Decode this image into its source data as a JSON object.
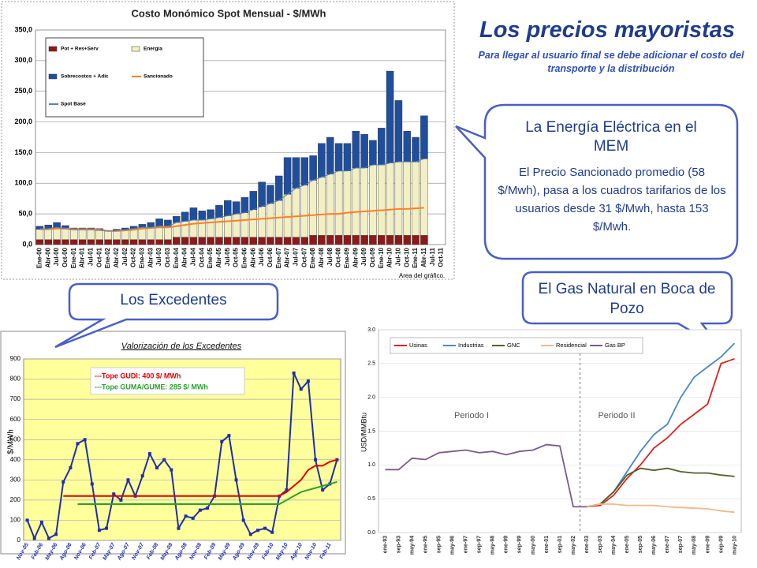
{
  "slide": {
    "title": "Los precios mayoristas",
    "subtitle": "Para llegar al usuario final se debe adicionar el costo del transporte y la distribución",
    "callouts": [
      {
        "heading": "La Energía Eléctrica en el MEM",
        "body": "El Precio Sancionado promedio (58 $/Mwh), pasa a los cuadros tarifarios de los usuarios desde 31 $/Mwh, hasta 153 $/Mwh."
      },
      {
        "heading": "Los Excedentes"
      },
      {
        "heading": "El Gas Natural en Boca de Pozo"
      }
    ]
  },
  "chart_data": [
    {
      "type": "bar",
      "title": "Costo Monómico Spot Mensual - $/MWh",
      "annotations": [
        "Area del gráfico."
      ],
      "categories": [
        "Ene-00",
        "Abr-00",
        "Jul-00",
        "Oct-00",
        "Ene-01",
        "Abr-01",
        "Jul-01",
        "Oct-01",
        "Ene-02",
        "Abr-02",
        "Jul-02",
        "Oct-02",
        "Ene-03",
        "Abr-03",
        "Jul-03",
        "Oct-03",
        "Ene-04",
        "Abr-04",
        "Jul-04",
        "Oct-04",
        "Ene-05",
        "Abr-05",
        "Jul-05",
        "Oct-05",
        "Ene-06",
        "Abr-06",
        "Jul-06",
        "Oct-06",
        "Ene-07",
        "Abr-07",
        "Jul-07",
        "Oct-07",
        "Ene-08",
        "Abr-08",
        "Jul-08",
        "Oct-08",
        "Ene-09",
        "Abr-09",
        "Jul-09",
        "Oct-09",
        "Ene-10",
        "Abr-10",
        "Jul-10",
        "Oct-10",
        "Ene-11",
        "Abr-11",
        "Jul-11",
        "Oct-11"
      ],
      "ylim": [
        0,
        350
      ],
      "yticks": [
        {
          "value": 0,
          "label": "0,0"
        },
        {
          "value": 50,
          "label": "50,0"
        },
        {
          "value": 100,
          "label": "100,0"
        },
        {
          "value": 150,
          "label": "150,0"
        },
        {
          "value": 200,
          "label": "200,0"
        },
        {
          "value": 250,
          "label": "250,0"
        },
        {
          "value": 300,
          "label": "300,0"
        },
        {
          "value": 350,
          "label": "350,0"
        }
      ],
      "grid": true,
      "series": [
        {
          "name": "Pot + Res+Serv",
          "color": "#8b1a1a",
          "values": [
            8,
            8,
            8,
            8,
            8,
            8,
            8,
            8,
            8,
            8,
            8,
            8,
            8,
            8,
            8,
            8,
            12,
            12,
            12,
            12,
            12,
            12,
            12,
            12,
            12,
            12,
            12,
            12,
            12,
            12,
            12,
            12,
            15,
            15,
            15,
            15,
            15,
            15,
            15,
            15,
            15,
            15,
            15,
            15,
            15,
            15,
            null,
            null
          ]
        },
        {
          "name": "Energía",
          "color": "#f3efc4",
          "values": [
            17,
            18,
            20,
            18,
            16,
            16,
            16,
            15,
            14,
            15,
            16,
            18,
            20,
            20,
            22,
            22,
            24,
            26,
            28,
            28,
            30,
            32,
            35,
            38,
            40,
            45,
            50,
            55,
            60,
            70,
            80,
            85,
            90,
            95,
            100,
            105,
            105,
            110,
            110,
            115,
            115,
            118,
            120,
            120,
            120,
            125,
            null,
            null
          ]
        },
        {
          "name": "Sobrecostos + Adic",
          "color": "#1f4e9c",
          "values": [
            5,
            6,
            8,
            5,
            3,
            3,
            3,
            3,
            1,
            2,
            3,
            4,
            5,
            8,
            12,
            10,
            10,
            15,
            20,
            15,
            15,
            20,
            25,
            20,
            25,
            30,
            40,
            30,
            40,
            60,
            50,
            45,
            40,
            55,
            60,
            45,
            45,
            60,
            55,
            40,
            60,
            150,
            100,
            50,
            40,
            70,
            null,
            null
          ]
        },
        {
          "name": "Sancionado",
          "type": "line",
          "color": "#ff7f27",
          "values": [
            25,
            25,
            26,
            26,
            25,
            25,
            25,
            24,
            22,
            22,
            23,
            24,
            26,
            27,
            28,
            28,
            30,
            32,
            34,
            35,
            36,
            37,
            38,
            39,
            40,
            41,
            42,
            43,
            44,
            45,
            46,
            47,
            48,
            49,
            50,
            50,
            52,
            53,
            54,
            55,
            56,
            57,
            58,
            58,
            59,
            60,
            null,
            null
          ]
        },
        {
          "name": "Spot Base",
          "type": "line",
          "color": "#4f81bd",
          "values": [
            25,
            26,
            28,
            26,
            24,
            24,
            24,
            23,
            22,
            23,
            24,
            26,
            28,
            28,
            30,
            30,
            36,
            38,
            40,
            40,
            42,
            44,
            47,
            50,
            52,
            57,
            62,
            67,
            72,
            82,
            92,
            97,
            105,
            110,
            115,
            120,
            120,
            125,
            125,
            130,
            130,
            133,
            135,
            135,
            135,
            140,
            null,
            null
          ]
        }
      ]
    },
    {
      "type": "line",
      "title": "Valorización de los Excedentes",
      "y_label": "$/MWh",
      "categories": [
        "Nov-05",
        null,
        "Feb-06",
        null,
        "May-06",
        null,
        "Ago-06",
        null,
        "Nov-06",
        null,
        "Feb-07",
        null,
        "May-07",
        null,
        "Ago-07",
        null,
        "Nov-07",
        null,
        "Feb-08",
        null,
        "May-08",
        null,
        "Ago-08",
        null,
        "Nov-08",
        null,
        "Feb-09",
        null,
        "May-09",
        null,
        "Ago-09",
        null,
        "Nov-09",
        null,
        "Feb-10",
        null,
        "May-10",
        null,
        "Ago-10",
        null,
        "Nov-10",
        null,
        "Feb-11",
        null
      ],
      "ylim": [
        0,
        900
      ],
      "yticks": [
        0,
        100,
        200,
        300,
        400,
        500,
        600,
        700,
        800,
        900
      ],
      "grid": true,
      "series": [
        {
          "color": "#1f2fa8",
          "values": [
            100,
            10,
            90,
            10,
            30,
            290,
            360,
            480,
            500,
            280,
            50,
            60,
            230,
            200,
            300,
            220,
            320,
            430,
            360,
            400,
            350,
            60,
            120,
            110,
            150,
            160,
            220,
            490,
            520,
            300,
            100,
            30,
            50,
            60,
            40,
            220,
            250,
            830,
            750,
            790,
            400,
            250,
            280,
            400
          ]
        },
        {
          "name": "---Tope GUDI:  400 $/ MWh",
          "color": "#e00000",
          "values": [
            null,
            null,
            null,
            null,
            null,
            220,
            220,
            220,
            220,
            220,
            220,
            220,
            220,
            220,
            220,
            220,
            220,
            220,
            220,
            220,
            220,
            220,
            220,
            220,
            220,
            220,
            220,
            220,
            220,
            220,
            220,
            220,
            220,
            220,
            220,
            220,
            240,
            270,
            300,
            350,
            370,
            370,
            390,
            400
          ]
        },
        {
          "name": "---Tope GUMA/GUME: 285 $/ MWh",
          "color": "#2ca02c",
          "values": [
            null,
            null,
            null,
            null,
            null,
            null,
            null,
            180,
            180,
            180,
            180,
            180,
            180,
            180,
            180,
            180,
            180,
            180,
            180,
            180,
            180,
            180,
            180,
            180,
            180,
            180,
            180,
            180,
            180,
            180,
            180,
            180,
            180,
            180,
            180,
            180,
            200,
            220,
            240,
            250,
            260,
            270,
            280,
            290
          ]
        }
      ]
    },
    {
      "type": "line",
      "y_label": "USD/MMBtu",
      "annotations": [
        "Periodo I",
        "Periodo II"
      ],
      "categories": [
        "ene-93",
        "sep-93",
        "may-94",
        "ene-95",
        "sep-95",
        "may-96",
        "ene-97",
        "sep-97",
        "may-98",
        "ene-99",
        "sep-99",
        "may-00",
        "ene-01",
        "sep-01",
        "may-02",
        "ene-03",
        "sep-03",
        "may-04",
        "ene-05",
        "sep-05",
        "may-06",
        "ene-07",
        "sep-07",
        "may-08",
        "ene-09",
        "sep-09",
        "may-10"
      ],
      "ylim": [
        0,
        3
      ],
      "yticks": [
        {
          "value": 0,
          "label": "0.0"
        },
        0.5,
        {
          "value": 1,
          "label": "1.0"
        },
        1.5,
        {
          "value": 2,
          "label": "2.0"
        },
        2.5,
        {
          "value": 3,
          "label": "3.0"
        }
      ],
      "grid": true,
      "series": [
        {
          "name": "Usinas",
          "color": "#e02020",
          "values": [
            null,
            null,
            null,
            null,
            null,
            null,
            null,
            null,
            null,
            null,
            null,
            null,
            null,
            null,
            null,
            0.38,
            0.4,
            0.55,
            0.8,
            1.0,
            1.25,
            1.4,
            1.6,
            1.75,
            1.9,
            2.5,
            2.57
          ]
        },
        {
          "name": "Industrias",
          "color": "#4a86c5",
          "values": [
            null,
            null,
            null,
            null,
            null,
            null,
            null,
            null,
            null,
            null,
            null,
            null,
            null,
            null,
            null,
            0.38,
            0.42,
            0.6,
            0.9,
            1.2,
            1.45,
            1.6,
            2.0,
            2.3,
            2.45,
            2.6,
            2.8
          ]
        },
        {
          "name": "GNC",
          "color": "#4f6228",
          "values": [
            null,
            null,
            null,
            null,
            null,
            null,
            null,
            null,
            null,
            null,
            null,
            null,
            null,
            null,
            null,
            0.38,
            0.42,
            0.6,
            0.85,
            0.95,
            0.92,
            0.95,
            0.9,
            0.88,
            0.88,
            0.85,
            0.83
          ]
        },
        {
          "name": "Residencial",
          "color": "#f0b98a",
          "values": [
            null,
            null,
            null,
            null,
            null,
            null,
            null,
            null,
            null,
            null,
            null,
            null,
            null,
            null,
            null,
            0.38,
            0.42,
            0.42,
            0.4,
            0.4,
            0.4,
            0.38,
            0.37,
            0.36,
            0.35,
            0.32,
            0.3
          ]
        },
        {
          "name": "Gas BP",
          "color": "#7a5a8a",
          "values": [
            0.93,
            0.93,
            1.1,
            1.08,
            1.18,
            1.2,
            1.22,
            1.18,
            1.2,
            1.15,
            1.2,
            1.22,
            1.3,
            1.28,
            0.38,
            0.38,
            null,
            null,
            null,
            null,
            null,
            null,
            null,
            null,
            null,
            null,
            null
          ]
        }
      ]
    }
  ]
}
